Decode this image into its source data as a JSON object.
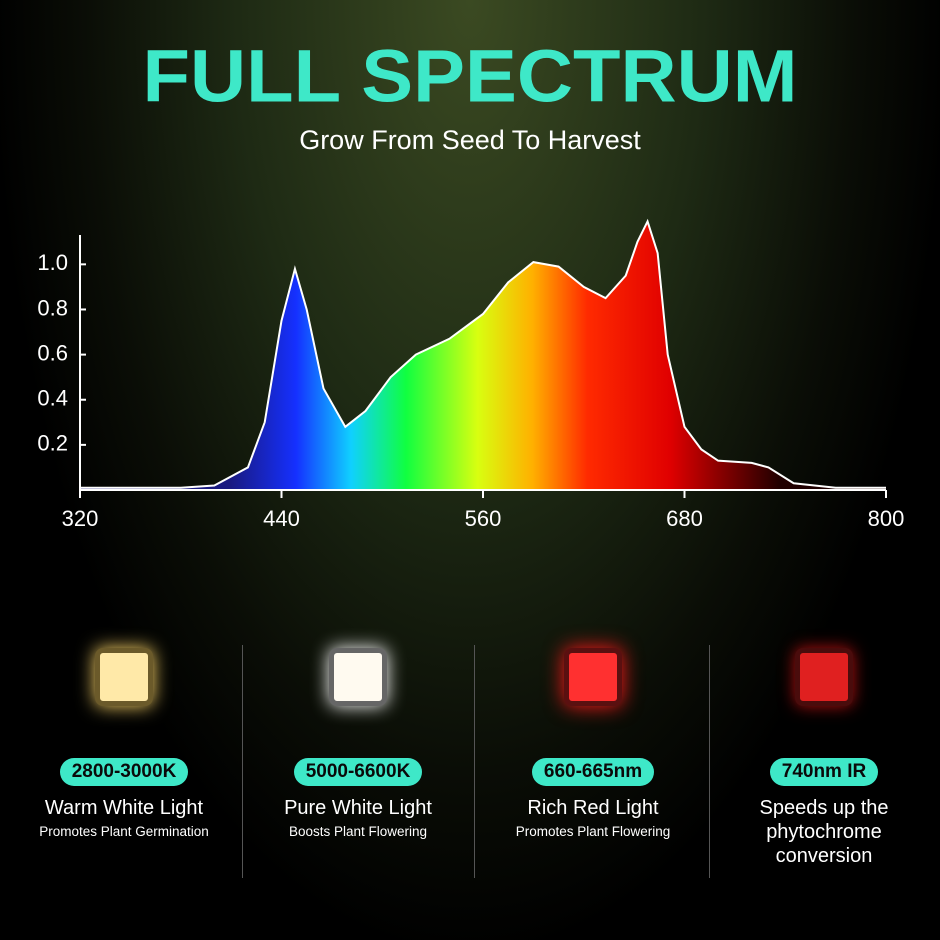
{
  "chart_data": {
    "type": "area",
    "title": "FULL SPECTRUM",
    "subtitle": "Grow From Seed To Harvest",
    "x": [
      320,
      380,
      400,
      420,
      430,
      440,
      448,
      455,
      465,
      478,
      490,
      505,
      520,
      540,
      560,
      575,
      590,
      605,
      620,
      633,
      645,
      652,
      658,
      664,
      670,
      680,
      690,
      700,
      720,
      730,
      745,
      770,
      800
    ],
    "values": [
      0.01,
      0.01,
      0.02,
      0.1,
      0.3,
      0.75,
      0.98,
      0.8,
      0.45,
      0.28,
      0.35,
      0.5,
      0.6,
      0.67,
      0.78,
      0.92,
      1.01,
      0.99,
      0.9,
      0.85,
      0.95,
      1.1,
      1.19,
      1.05,
      0.6,
      0.28,
      0.18,
      0.13,
      0.12,
      0.1,
      0.03,
      0.01,
      0.01
    ],
    "xlim": [
      320,
      800
    ],
    "xticks": [
      320,
      440,
      560,
      680,
      800
    ],
    "ylim": [
      0,
      1.13
    ],
    "yticks": [
      0.2,
      0.4,
      0.6,
      0.8,
      {
        "value": 1,
        "label": "1.0"
      }
    ]
  },
  "cards": [
    {
      "badge": "2800-3000K",
      "title": "Warm White Light",
      "subtitle": "Promotes Plant Germination"
    },
    {
      "badge": "5000-6600K",
      "title": "Pure White Light",
      "subtitle": "Boosts Plant Flowering"
    },
    {
      "badge": "660-665nm",
      "title": "Rich Red Light",
      "subtitle": "Promotes Plant Flowering"
    },
    {
      "badge": "740nm IR",
      "title": "Speeds up the phytochrome conversion"
    }
  ]
}
